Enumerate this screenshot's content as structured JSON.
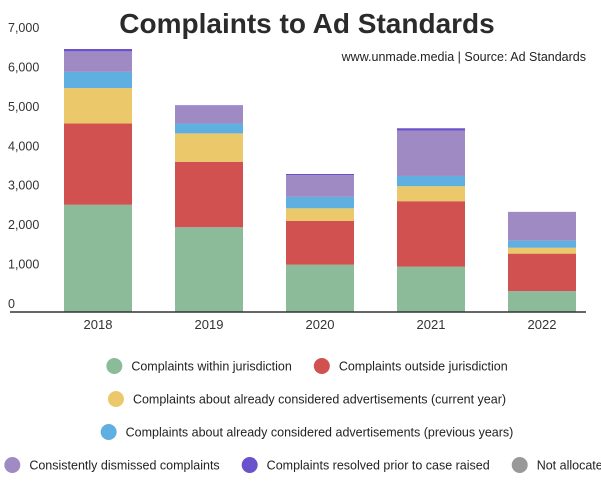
{
  "chart_data": {
    "type": "bar",
    "stacked": true,
    "title": "Complaints to Ad Standards",
    "subtitle": "www.unmade.media | Source: Ad Standards",
    "xlabel": "",
    "ylabel": "",
    "ylim": [
      0,
      7000
    ],
    "yticks": [
      0,
      1000,
      2000,
      3000,
      4000,
      5000,
      6000,
      7000
    ],
    "ytick_labels": [
      "0",
      "1,000",
      "2,000",
      "3,000",
      "4,000",
      "5,000",
      "6,000",
      "7,000"
    ],
    "grid": false,
    "legend_position": "bottom",
    "categories": [
      "2018",
      "2019",
      "2020",
      "2021",
      "2022"
    ],
    "series": [
      {
        "name": "Complaints within jurisdiction",
        "color": "#8cbb9a",
        "values": [
          2720,
          2150,
          1200,
          1150,
          530
        ]
      },
      {
        "name": "Complaints outside jurisdiction",
        "color": "#d0514f",
        "values": [
          2060,
          1660,
          1110,
          1660,
          950
        ]
      },
      {
        "name": "Complaints about already considered advertisements (current year)",
        "color": "#ebc86a",
        "values": [
          900,
          720,
          320,
          380,
          150
        ]
      },
      {
        "name": "Complaints about already considered advertisements (previous years)",
        "color": "#5fb0e0",
        "values": [
          410,
          250,
          290,
          260,
          180
        ]
      },
      {
        "name": "Consistently dismissed complaints",
        "color": "#a08ac4",
        "values": [
          520,
          440,
          550,
          1150,
          730
        ]
      },
      {
        "name": "Complaints resolved prior to case raised",
        "color": "#6a52cc",
        "values": [
          60,
          20,
          30,
          60,
          0
        ]
      },
      {
        "name": "Not allocated",
        "color": "#999999",
        "values": [
          0,
          0,
          0,
          0,
          0
        ]
      }
    ]
  }
}
